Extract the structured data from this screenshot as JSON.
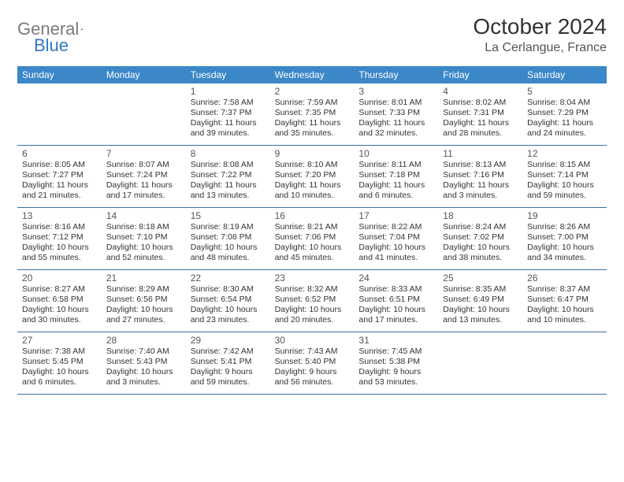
{
  "logo": {
    "gray": "General",
    "blue": "Blue"
  },
  "title": "October 2024",
  "location": "La Cerlangue, France",
  "colors": {
    "header_bg": "#3b87c8",
    "header_text": "#ffffff",
    "row_border": "#3b6fa0",
    "text": "#333333",
    "logo_gray": "#7a7a7a",
    "logo_blue": "#2f78c3"
  },
  "day_headers": [
    "Sunday",
    "Monday",
    "Tuesday",
    "Wednesday",
    "Thursday",
    "Friday",
    "Saturday"
  ],
  "weeks": [
    [
      {
        "n": "",
        "sr": "",
        "ss": "",
        "dl": ""
      },
      {
        "n": "",
        "sr": "",
        "ss": "",
        "dl": ""
      },
      {
        "n": "1",
        "sr": "Sunrise: 7:58 AM",
        "ss": "Sunset: 7:37 PM",
        "dl": "Daylight: 11 hours and 39 minutes."
      },
      {
        "n": "2",
        "sr": "Sunrise: 7:59 AM",
        "ss": "Sunset: 7:35 PM",
        "dl": "Daylight: 11 hours and 35 minutes."
      },
      {
        "n": "3",
        "sr": "Sunrise: 8:01 AM",
        "ss": "Sunset: 7:33 PM",
        "dl": "Daylight: 11 hours and 32 minutes."
      },
      {
        "n": "4",
        "sr": "Sunrise: 8:02 AM",
        "ss": "Sunset: 7:31 PM",
        "dl": "Daylight: 11 hours and 28 minutes."
      },
      {
        "n": "5",
        "sr": "Sunrise: 8:04 AM",
        "ss": "Sunset: 7:29 PM",
        "dl": "Daylight: 11 hours and 24 minutes."
      }
    ],
    [
      {
        "n": "6",
        "sr": "Sunrise: 8:05 AM",
        "ss": "Sunset: 7:27 PM",
        "dl": "Daylight: 11 hours and 21 minutes."
      },
      {
        "n": "7",
        "sr": "Sunrise: 8:07 AM",
        "ss": "Sunset: 7:24 PM",
        "dl": "Daylight: 11 hours and 17 minutes."
      },
      {
        "n": "8",
        "sr": "Sunrise: 8:08 AM",
        "ss": "Sunset: 7:22 PM",
        "dl": "Daylight: 11 hours and 13 minutes."
      },
      {
        "n": "9",
        "sr": "Sunrise: 8:10 AM",
        "ss": "Sunset: 7:20 PM",
        "dl": "Daylight: 11 hours and 10 minutes."
      },
      {
        "n": "10",
        "sr": "Sunrise: 8:11 AM",
        "ss": "Sunset: 7:18 PM",
        "dl": "Daylight: 11 hours and 6 minutes."
      },
      {
        "n": "11",
        "sr": "Sunrise: 8:13 AM",
        "ss": "Sunset: 7:16 PM",
        "dl": "Daylight: 11 hours and 3 minutes."
      },
      {
        "n": "12",
        "sr": "Sunrise: 8:15 AM",
        "ss": "Sunset: 7:14 PM",
        "dl": "Daylight: 10 hours and 59 minutes."
      }
    ],
    [
      {
        "n": "13",
        "sr": "Sunrise: 8:16 AM",
        "ss": "Sunset: 7:12 PM",
        "dl": "Daylight: 10 hours and 55 minutes."
      },
      {
        "n": "14",
        "sr": "Sunrise: 8:18 AM",
        "ss": "Sunset: 7:10 PM",
        "dl": "Daylight: 10 hours and 52 minutes."
      },
      {
        "n": "15",
        "sr": "Sunrise: 8:19 AM",
        "ss": "Sunset: 7:08 PM",
        "dl": "Daylight: 10 hours and 48 minutes."
      },
      {
        "n": "16",
        "sr": "Sunrise: 8:21 AM",
        "ss": "Sunset: 7:06 PM",
        "dl": "Daylight: 10 hours and 45 minutes."
      },
      {
        "n": "17",
        "sr": "Sunrise: 8:22 AM",
        "ss": "Sunset: 7:04 PM",
        "dl": "Daylight: 10 hours and 41 minutes."
      },
      {
        "n": "18",
        "sr": "Sunrise: 8:24 AM",
        "ss": "Sunset: 7:02 PM",
        "dl": "Daylight: 10 hours and 38 minutes."
      },
      {
        "n": "19",
        "sr": "Sunrise: 8:26 AM",
        "ss": "Sunset: 7:00 PM",
        "dl": "Daylight: 10 hours and 34 minutes."
      }
    ],
    [
      {
        "n": "20",
        "sr": "Sunrise: 8:27 AM",
        "ss": "Sunset: 6:58 PM",
        "dl": "Daylight: 10 hours and 30 minutes."
      },
      {
        "n": "21",
        "sr": "Sunrise: 8:29 AM",
        "ss": "Sunset: 6:56 PM",
        "dl": "Daylight: 10 hours and 27 minutes."
      },
      {
        "n": "22",
        "sr": "Sunrise: 8:30 AM",
        "ss": "Sunset: 6:54 PM",
        "dl": "Daylight: 10 hours and 23 minutes."
      },
      {
        "n": "23",
        "sr": "Sunrise: 8:32 AM",
        "ss": "Sunset: 6:52 PM",
        "dl": "Daylight: 10 hours and 20 minutes."
      },
      {
        "n": "24",
        "sr": "Sunrise: 8:33 AM",
        "ss": "Sunset: 6:51 PM",
        "dl": "Daylight: 10 hours and 17 minutes."
      },
      {
        "n": "25",
        "sr": "Sunrise: 8:35 AM",
        "ss": "Sunset: 6:49 PM",
        "dl": "Daylight: 10 hours and 13 minutes."
      },
      {
        "n": "26",
        "sr": "Sunrise: 8:37 AM",
        "ss": "Sunset: 6:47 PM",
        "dl": "Daylight: 10 hours and 10 minutes."
      }
    ],
    [
      {
        "n": "27",
        "sr": "Sunrise: 7:38 AM",
        "ss": "Sunset: 5:45 PM",
        "dl": "Daylight: 10 hours and 6 minutes."
      },
      {
        "n": "28",
        "sr": "Sunrise: 7:40 AM",
        "ss": "Sunset: 5:43 PM",
        "dl": "Daylight: 10 hours and 3 minutes."
      },
      {
        "n": "29",
        "sr": "Sunrise: 7:42 AM",
        "ss": "Sunset: 5:41 PM",
        "dl": "Daylight: 9 hours and 59 minutes."
      },
      {
        "n": "30",
        "sr": "Sunrise: 7:43 AM",
        "ss": "Sunset: 5:40 PM",
        "dl": "Daylight: 9 hours and 56 minutes."
      },
      {
        "n": "31",
        "sr": "Sunrise: 7:45 AM",
        "ss": "Sunset: 5:38 PM",
        "dl": "Daylight: 9 hours and 53 minutes."
      },
      {
        "n": "",
        "sr": "",
        "ss": "",
        "dl": ""
      },
      {
        "n": "",
        "sr": "",
        "ss": "",
        "dl": ""
      }
    ]
  ]
}
